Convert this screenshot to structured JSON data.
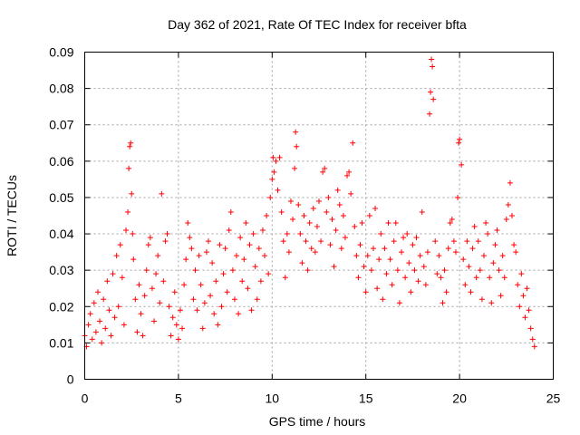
{
  "chart_data": {
    "type": "scatter",
    "title": "Day 362 of 2021, Rate Of TEC Index for receiver bfta",
    "xlabel": "GPS time / hours",
    "ylabel": "ROTI / TECUs",
    "xlim": [
      0,
      25
    ],
    "ylim": [
      0,
      0.09
    ],
    "x_ticks": [
      0,
      5,
      10,
      15,
      20,
      25
    ],
    "y_ticks": [
      0,
      0.01,
      0.02,
      0.03,
      0.04,
      0.05,
      0.06,
      0.07,
      0.08,
      0.09
    ],
    "x_tick_labels": [
      "0",
      "5",
      "10",
      "15",
      "20",
      "25"
    ],
    "y_tick_labels": [
      "0",
      "0.01",
      "0.02",
      "0.03",
      "0.04",
      "0.05",
      "0.06",
      "0.07",
      "0.08",
      "0.09"
    ],
    "grid": true,
    "marker": "+",
    "color": "#ff0000",
    "series": [
      {
        "points": [
          [
            0.0,
            0.012
          ],
          [
            0.1,
            0.009
          ],
          [
            0.2,
            0.015
          ],
          [
            0.3,
            0.018
          ],
          [
            0.4,
            0.011
          ],
          [
            0.5,
            0.021
          ],
          [
            0.6,
            0.013
          ],
          [
            0.7,
            0.024
          ],
          [
            0.8,
            0.016
          ],
          [
            0.9,
            0.01
          ],
          [
            1.0,
            0.022
          ],
          [
            1.1,
            0.014
          ],
          [
            1.2,
            0.027
          ],
          [
            1.3,
            0.019
          ],
          [
            1.4,
            0.012
          ],
          [
            1.5,
            0.029
          ],
          [
            1.6,
            0.017
          ],
          [
            1.7,
            0.034
          ],
          [
            1.8,
            0.02
          ],
          [
            1.9,
            0.037
          ],
          [
            2.0,
            0.028
          ],
          [
            2.1,
            0.015
          ],
          [
            2.2,
            0.041
          ],
          [
            2.3,
            0.046
          ],
          [
            2.35,
            0.058
          ],
          [
            2.4,
            0.064
          ],
          [
            2.45,
            0.065
          ],
          [
            2.5,
            0.051
          ],
          [
            2.55,
            0.04
          ],
          [
            2.6,
            0.033
          ],
          [
            2.7,
            0.022
          ],
          [
            2.8,
            0.013
          ],
          [
            2.9,
            0.026
          ],
          [
            3.0,
            0.018
          ],
          [
            3.1,
            0.012
          ],
          [
            3.2,
            0.023
          ],
          [
            3.3,
            0.03
          ],
          [
            3.4,
            0.037
          ],
          [
            3.5,
            0.039
          ],
          [
            3.6,
            0.025
          ],
          [
            3.7,
            0.016
          ],
          [
            3.8,
            0.029
          ],
          [
            3.9,
            0.034
          ],
          [
            4.0,
            0.021
          ],
          [
            4.1,
            0.051
          ],
          [
            4.2,
            0.027
          ],
          [
            4.3,
            0.038
          ],
          [
            4.4,
            0.04
          ],
          [
            4.5,
            0.02
          ],
          [
            4.6,
            0.012
          ],
          [
            4.7,
            0.017
          ],
          [
            4.8,
            0.024
          ],
          [
            4.9,
            0.015
          ],
          [
            5.0,
            0.011
          ],
          [
            5.1,
            0.019
          ],
          [
            5.2,
            0.014
          ],
          [
            5.3,
            0.026
          ],
          [
            5.4,
            0.033
          ],
          [
            5.5,
            0.043
          ],
          [
            5.6,
            0.039
          ],
          [
            5.7,
            0.036
          ],
          [
            5.8,
            0.022
          ],
          [
            5.9,
            0.03
          ],
          [
            6.0,
            0.019
          ],
          [
            6.1,
            0.034
          ],
          [
            6.2,
            0.026
          ],
          [
            6.3,
            0.014
          ],
          [
            6.4,
            0.021
          ],
          [
            6.5,
            0.035
          ],
          [
            6.6,
            0.038
          ],
          [
            6.7,
            0.023
          ],
          [
            6.8,
            0.032
          ],
          [
            6.9,
            0.018
          ],
          [
            7.0,
            0.027
          ],
          [
            7.1,
            0.015
          ],
          [
            7.2,
            0.037
          ],
          [
            7.3,
            0.02
          ],
          [
            7.4,
            0.029
          ],
          [
            7.5,
            0.036
          ],
          [
            7.6,
            0.024
          ],
          [
            7.7,
            0.041
          ],
          [
            7.8,
            0.046
          ],
          [
            7.9,
            0.03
          ],
          [
            8.0,
            0.022
          ],
          [
            8.1,
            0.034
          ],
          [
            8.2,
            0.018
          ],
          [
            8.3,
            0.039
          ],
          [
            8.4,
            0.027
          ],
          [
            8.5,
            0.033
          ],
          [
            8.6,
            0.043
          ],
          [
            8.7,
            0.025
          ],
          [
            8.8,
            0.037
          ],
          [
            8.9,
            0.019
          ],
          [
            9.0,
            0.04
          ],
          [
            9.1,
            0.031
          ],
          [
            9.2,
            0.022
          ],
          [
            9.3,
            0.036
          ],
          [
            9.4,
            0.027
          ],
          [
            9.5,
            0.041
          ],
          [
            9.6,
            0.034
          ],
          [
            9.7,
            0.045
          ],
          [
            9.8,
            0.029
          ],
          [
            9.9,
            0.05
          ],
          [
            10.0,
            0.055
          ],
          [
            10.05,
            0.061
          ],
          [
            10.1,
            0.057
          ],
          [
            10.2,
            0.06
          ],
          [
            10.3,
            0.052
          ],
          [
            10.4,
            0.061
          ],
          [
            10.5,
            0.046
          ],
          [
            10.6,
            0.038
          ],
          [
            10.7,
            0.028
          ],
          [
            10.8,
            0.04
          ],
          [
            10.9,
            0.035
          ],
          [
            11.0,
            0.049
          ],
          [
            11.1,
            0.044
          ],
          [
            11.2,
            0.058
          ],
          [
            11.25,
            0.068
          ],
          [
            11.3,
            0.064
          ],
          [
            11.4,
            0.048
          ],
          [
            11.5,
            0.04
          ],
          [
            11.6,
            0.032
          ],
          [
            11.7,
            0.045
          ],
          [
            11.8,
            0.038
          ],
          [
            11.9,
            0.03
          ],
          [
            12.0,
            0.043
          ],
          [
            12.1,
            0.036
          ],
          [
            12.2,
            0.047
          ],
          [
            12.3,
            0.035
          ],
          [
            12.4,
            0.042
          ],
          [
            12.5,
            0.049
          ],
          [
            12.6,
            0.038
          ],
          [
            12.7,
            0.057
          ],
          [
            12.8,
            0.058
          ],
          [
            12.9,
            0.046
          ],
          [
            13.0,
            0.05
          ],
          [
            13.1,
            0.037
          ],
          [
            13.2,
            0.044
          ],
          [
            13.3,
            0.031
          ],
          [
            13.4,
            0.041
          ],
          [
            13.5,
            0.052
          ],
          [
            13.6,
            0.048
          ],
          [
            13.7,
            0.036
          ],
          [
            13.8,
            0.045
          ],
          [
            13.9,
            0.039
          ],
          [
            14.0,
            0.056
          ],
          [
            14.1,
            0.057
          ],
          [
            14.2,
            0.051
          ],
          [
            14.3,
            0.065
          ],
          [
            14.4,
            0.042
          ],
          [
            14.5,
            0.034
          ],
          [
            14.6,
            0.028
          ],
          [
            14.7,
            0.037
          ],
          [
            14.8,
            0.043
          ],
          [
            14.9,
            0.031
          ],
          [
            15.0,
            0.024
          ],
          [
            15.1,
            0.034
          ],
          [
            15.2,
            0.045
          ],
          [
            15.3,
            0.03
          ],
          [
            15.4,
            0.036
          ],
          [
            15.5,
            0.047
          ],
          [
            15.6,
            0.025
          ],
          [
            15.7,
            0.033
          ],
          [
            15.8,
            0.04
          ],
          [
            15.9,
            0.022
          ],
          [
            16.0,
            0.036
          ],
          [
            16.1,
            0.029
          ],
          [
            16.2,
            0.043
          ],
          [
            16.3,
            0.033
          ],
          [
            16.4,
            0.026
          ],
          [
            16.5,
            0.038
          ],
          [
            16.6,
            0.043
          ],
          [
            16.7,
            0.03
          ],
          [
            16.8,
            0.021
          ],
          [
            16.9,
            0.035
          ],
          [
            17.0,
            0.039
          ],
          [
            17.1,
            0.028
          ],
          [
            17.2,
            0.04
          ],
          [
            17.3,
            0.032
          ],
          [
            17.4,
            0.024
          ],
          [
            17.5,
            0.037
          ],
          [
            17.6,
            0.03
          ],
          [
            17.7,
            0.039
          ],
          [
            17.8,
            0.027
          ],
          [
            17.9,
            0.034
          ],
          [
            18.0,
            0.046
          ],
          [
            18.1,
            0.031
          ],
          [
            18.2,
            0.026
          ],
          [
            18.3,
            0.035
          ],
          [
            18.4,
            0.073
          ],
          [
            18.45,
            0.079
          ],
          [
            18.5,
            0.088
          ],
          [
            18.55,
            0.086
          ],
          [
            18.6,
            0.077
          ],
          [
            18.7,
            0.038
          ],
          [
            18.8,
            0.029
          ],
          [
            18.9,
            0.034
          ],
          [
            19.0,
            0.028
          ],
          [
            19.1,
            0.021
          ],
          [
            19.2,
            0.03
          ],
          [
            19.3,
            0.024
          ],
          [
            19.4,
            0.036
          ],
          [
            19.5,
            0.043
          ],
          [
            19.6,
            0.044
          ],
          [
            19.7,
            0.038
          ],
          [
            19.8,
            0.035
          ],
          [
            19.9,
            0.05
          ],
          [
            19.95,
            0.065
          ],
          [
            20.0,
            0.066
          ],
          [
            20.1,
            0.059
          ],
          [
            20.2,
            0.033
          ],
          [
            20.3,
            0.026
          ],
          [
            20.4,
            0.038
          ],
          [
            20.5,
            0.031
          ],
          [
            20.6,
            0.024
          ],
          [
            20.7,
            0.036
          ],
          [
            20.8,
            0.042
          ],
          [
            20.9,
            0.028
          ],
          [
            21.0,
            0.038
          ],
          [
            21.1,
            0.03
          ],
          [
            21.2,
            0.022
          ],
          [
            21.3,
            0.034
          ],
          [
            21.4,
            0.043
          ],
          [
            21.5,
            0.04
          ],
          [
            21.6,
            0.028
          ],
          [
            21.7,
            0.021
          ],
          [
            21.8,
            0.032
          ],
          [
            21.9,
            0.037
          ],
          [
            22.0,
            0.041
          ],
          [
            22.1,
            0.03
          ],
          [
            22.2,
            0.023
          ],
          [
            22.3,
            0.034
          ],
          [
            22.4,
            0.028
          ],
          [
            22.5,
            0.044
          ],
          [
            22.6,
            0.048
          ],
          [
            22.7,
            0.054
          ],
          [
            22.8,
            0.045
          ],
          [
            22.9,
            0.037
          ],
          [
            23.0,
            0.035
          ],
          [
            23.1,
            0.026
          ],
          [
            23.2,
            0.02
          ],
          [
            23.3,
            0.029
          ],
          [
            23.4,
            0.023
          ],
          [
            23.5,
            0.017
          ],
          [
            23.6,
            0.025
          ],
          [
            23.7,
            0.019
          ],
          [
            23.8,
            0.014
          ],
          [
            23.9,
            0.011
          ],
          [
            24.0,
            0.009
          ]
        ]
      }
    ]
  }
}
